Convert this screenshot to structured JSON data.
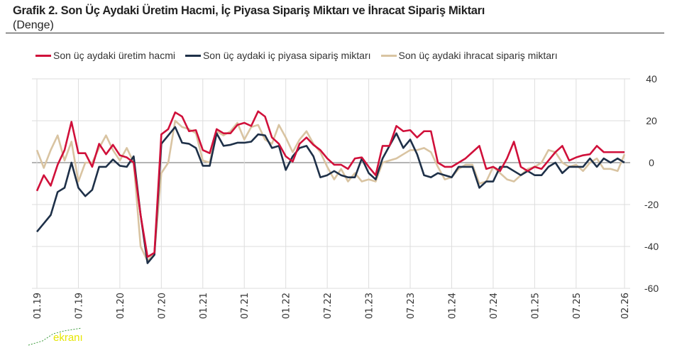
{
  "header": {
    "title": "Grafik 2. Son Üç Aydaki Üretim Hacmi, İç Piyasa Sipariş Miktarı ve İhracat Sipariş Miktarı",
    "subtitle": "(Denge)"
  },
  "watermark": {
    "text": "ekranı"
  },
  "chart_data": {
    "type": "line",
    "title": "Grafik 2. Son Üç Aydaki Üretim Hacmi, İç Piyasa Sipariş Miktarı ve İhracat Sipariş Miktarı",
    "subtitle": "(Denge)",
    "xlabel": "",
    "ylabel": "",
    "ylim": [
      -60,
      40
    ],
    "yticks": [
      40,
      20,
      0,
      -20,
      -40,
      -60
    ],
    "xticks": [
      {
        "index": 0,
        "label": "01.19"
      },
      {
        "index": 6,
        "label": "07.19"
      },
      {
        "index": 12,
        "label": "01.20"
      },
      {
        "index": 18,
        "label": "07.20"
      },
      {
        "index": 24,
        "label": "01.21"
      },
      {
        "index": 30,
        "label": "07.21"
      },
      {
        "index": 36,
        "label": "01.22"
      },
      {
        "index": 42,
        "label": "07.22"
      },
      {
        "index": 48,
        "label": "01.23"
      },
      {
        "index": 54,
        "label": "07.23"
      },
      {
        "index": 60,
        "label": "01.24"
      },
      {
        "index": 66,
        "label": "07.24"
      },
      {
        "index": 72,
        "label": "01.25"
      },
      {
        "index": 78,
        "label": "07.25"
      },
      {
        "index": 85,
        "label": "02.26"
      }
    ],
    "x_range": [
      "01.19",
      "02.26"
    ],
    "grid": true,
    "legend_position": "top",
    "series": [
      {
        "name": "Son üç aydaki üretim hacmi",
        "color": "#d0103a",
        "values": [
          -13.5,
          -6,
          -11,
          -1,
          6,
          19.5,
          4.5,
          4.5,
          -2,
          9,
          4,
          8.5,
          3.5,
          2.5,
          0,
          -25,
          -45,
          -43,
          13.5,
          16,
          24,
          22,
          15,
          15.5,
          6,
          4.5,
          16,
          14,
          14,
          18,
          19,
          17.5,
          24.5,
          22,
          12,
          9,
          3,
          0.5,
          9,
          12,
          8.5,
          6,
          2,
          -1,
          -1,
          -3,
          2,
          2.5,
          -2,
          -6,
          8,
          8,
          17.5,
          15,
          15.5,
          12,
          15,
          15,
          0,
          -2,
          -2,
          0,
          2,
          5,
          8,
          -3,
          -2,
          -4,
          2,
          10,
          -2,
          -4,
          -2,
          -3,
          1,
          5,
          8,
          1,
          2.5,
          3.5,
          4,
          8,
          5,
          5,
          5,
          5
        ]
      },
      {
        "name": "Son üç aydaki iç piyasa sipariş miktarı",
        "color": "#1e3048",
        "values": [
          -33,
          -29,
          -25,
          -14,
          -12,
          0,
          -12,
          -16,
          -13,
          -2,
          -2,
          1.5,
          -1.5,
          -2,
          3,
          -25,
          -48,
          -44,
          9,
          13,
          17,
          9.5,
          9,
          7,
          -1.5,
          -1.5,
          14,
          8,
          8.5,
          9.5,
          9.5,
          10,
          13.5,
          13,
          7,
          8,
          -3.5,
          3,
          7,
          8,
          3,
          -7,
          -6,
          -4,
          -6,
          -7,
          -7,
          2,
          -5,
          -8,
          2,
          8,
          14,
          7,
          11,
          4,
          -6,
          -7,
          -5,
          -6,
          -7,
          -2,
          -2,
          -2,
          -12,
          -9,
          -9,
          -2,
          -2,
          -4,
          -6,
          -4,
          -6,
          -6,
          -2,
          0,
          -5,
          -2,
          -2,
          -2,
          2,
          -2,
          2,
          0,
          2,
          0
        ]
      },
      {
        "name": "Son üç aydaki ihracat sipariş miktarı",
        "color": "#d9c4a2",
        "values": [
          6,
          -2.5,
          6,
          13,
          1,
          10,
          -9,
          0,
          0,
          7,
          13,
          6,
          1,
          7,
          0,
          -40,
          -47,
          -43,
          -5,
          0,
          20,
          17,
          16,
          14,
          1,
          0,
          15,
          13,
          15,
          19,
          11,
          17,
          18,
          11,
          9,
          18,
          12,
          5,
          11,
          15,
          9,
          5,
          -2,
          -8,
          -3,
          -9,
          -5,
          -9,
          -8,
          -9,
          0,
          1,
          2,
          4,
          6,
          6,
          7,
          5,
          -2,
          -8,
          -7,
          -3,
          -1,
          -1,
          -10,
          -9,
          -2,
          -5,
          -8,
          -9,
          -6,
          -3,
          -2,
          0,
          6,
          5,
          0,
          -2,
          -1,
          -4,
          0,
          2,
          -3,
          -3,
          -4,
          4
        ]
      }
    ]
  }
}
